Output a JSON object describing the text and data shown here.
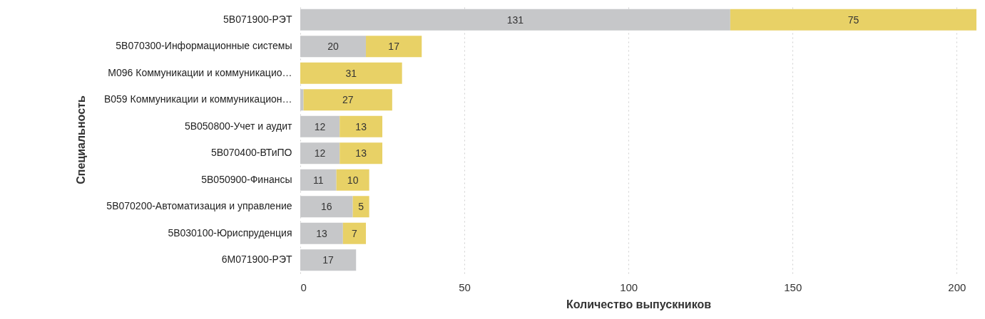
{
  "chart_data": {
    "type": "bar",
    "orientation": "horizontal",
    "stacked": true,
    "xlabel": "Количество выпускников",
    "ylabel": "Специальность",
    "categories": [
      "5B071900-РЭТ",
      "5B070300-Информационные системы",
      "M096 Коммуникации и коммуникацио…",
      "B059 Коммуникации и коммуникацион…",
      "5B050800-Учет и аудит",
      "5B070400-ВТиПО",
      "5B050900-Финансы",
      "5B070200-Автоматизация и управление",
      "5B030100-Юриспруденция",
      "6M071900-РЭТ"
    ],
    "series": [
      {
        "color": "#c6c7c9",
        "values": [
          131,
          20,
          null,
          1,
          12,
          12,
          11,
          16,
          13,
          17
        ],
        "value_labels": [
          "131",
          "20",
          null,
          null,
          "12",
          "12",
          "11",
          "16",
          "13",
          "17"
        ]
      },
      {
        "color": "#e8d166",
        "values": [
          75,
          17,
          31,
          27,
          13,
          13,
          10,
          5,
          7,
          null
        ],
        "value_labels": [
          "75",
          "17",
          "31",
          "27",
          "13",
          "13",
          "10",
          "5",
          "7",
          null
        ]
      }
    ],
    "xlim": [
      0,
      206
    ],
    "xticks": [
      0,
      50,
      100,
      150,
      200
    ],
    "grid": "x"
  }
}
